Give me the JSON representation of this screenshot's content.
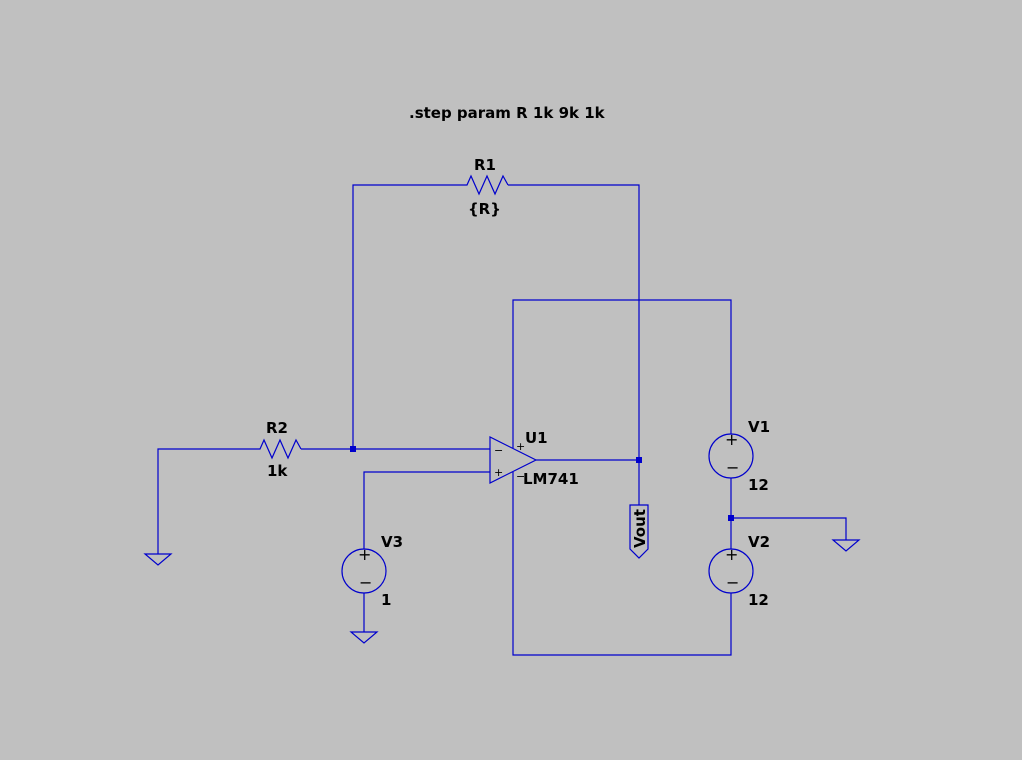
{
  "directive": ".step param R 1k 9k 1k",
  "components": {
    "r1": {
      "name": "R1",
      "value": "{R}"
    },
    "r2": {
      "name": "R2",
      "value": "1k"
    },
    "u1": {
      "name": "U1",
      "value": "LM741",
      "pin_plus": "+",
      "pin_minus": "−"
    },
    "v1": {
      "name": "V1",
      "value": "12"
    },
    "v2": {
      "name": "V2",
      "value": "12"
    },
    "v3": {
      "name": "V3",
      "value": "1"
    }
  },
  "net_labels": {
    "vout": "Vout"
  },
  "colors": {
    "background": "#c0c0c0",
    "wire": "#0000cc",
    "text": "#000000"
  }
}
